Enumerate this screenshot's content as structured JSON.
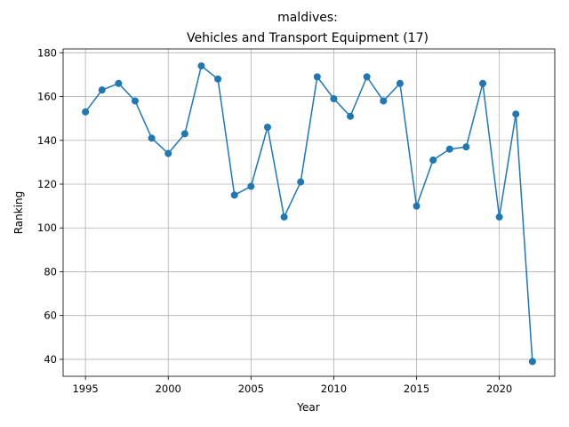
{
  "chart_data": {
    "type": "line",
    "title_line1": "maldives:",
    "title_line2": "Vehicles and Transport Equipment (17)",
    "xlabel": "Year",
    "ylabel": "Ranking",
    "xlim": [
      1993.65,
      2023.35
    ],
    "ylim": [
      32.25,
      181.75
    ],
    "xticks": [
      1995,
      2000,
      2005,
      2010,
      2015,
      2020
    ],
    "yticks": [
      40,
      60,
      80,
      100,
      120,
      140,
      160,
      180
    ],
    "grid": true,
    "color": "#1f77b4",
    "series": [
      {
        "x": [
          1995,
          1996,
          1997,
          1998,
          1999,
          2000,
          2001,
          2002,
          2003,
          2004,
          2005,
          2006,
          2007,
          2008,
          2009,
          2010,
          2011,
          2012,
          2013,
          2014,
          2015,
          2016,
          2017,
          2018,
          2019,
          2020,
          2021,
          2022
        ],
        "values": [
          153,
          163,
          166,
          158,
          141,
          134,
          143,
          174,
          168,
          115,
          119,
          146,
          105,
          121,
          169,
          159,
          151,
          169,
          158,
          166,
          110,
          131,
          136,
          137,
          166,
          105,
          152,
          39
        ]
      }
    ]
  }
}
